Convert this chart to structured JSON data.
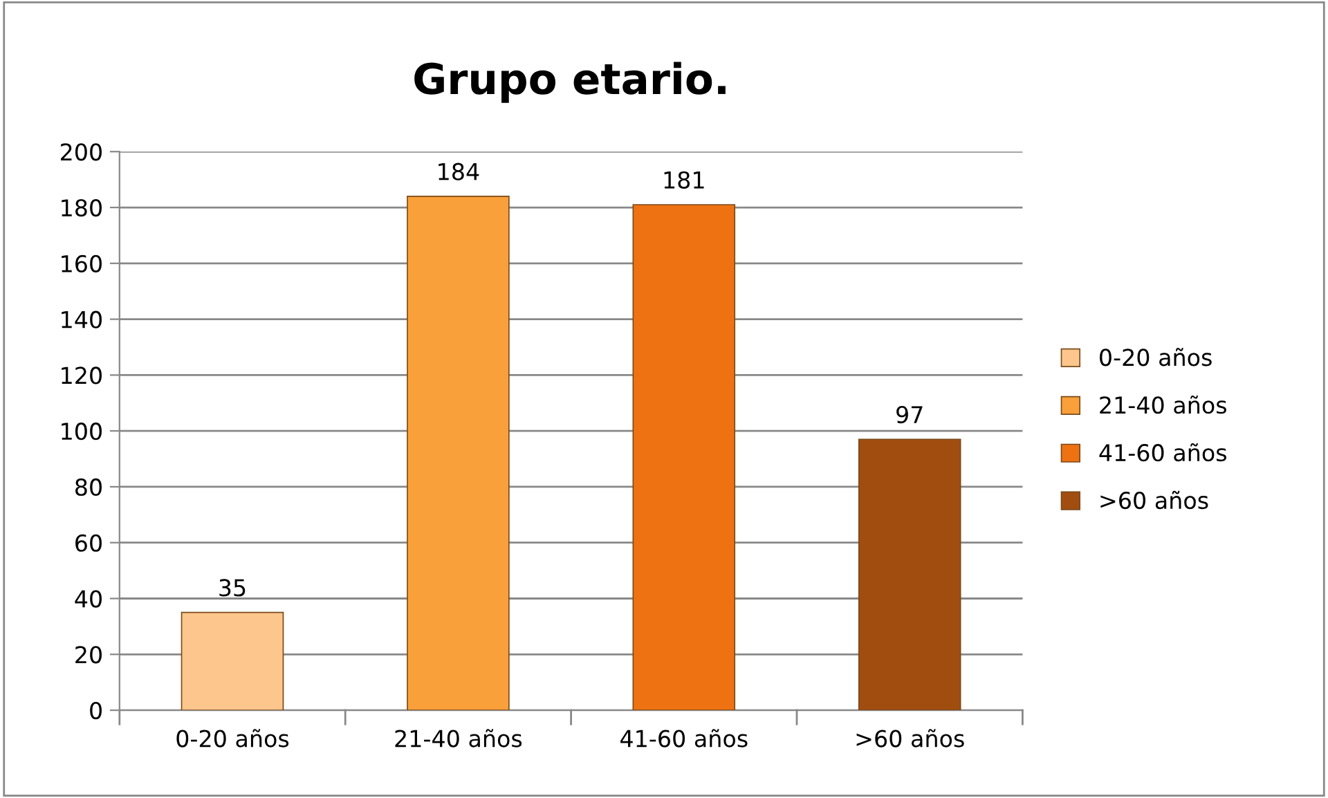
{
  "chart_data": {
    "type": "bar",
    "title": "Grupo etario.",
    "categories": [
      "0-20 años",
      "21-40 años",
      "41-60 años",
      ">60 años"
    ],
    "series": [
      {
        "name": "0-20 años",
        "color": "#fcc68c",
        "values": [
          35,
          null,
          null,
          null
        ]
      },
      {
        "name": "21-40 años",
        "color": "#f9a03a",
        "values": [
          null,
          184,
          null,
          null
        ]
      },
      {
        "name": "41-60 años",
        "color": "#ee7212",
        "values": [
          null,
          null,
          181,
          null
        ]
      },
      {
        "name": ">60 años",
        "color": "#a24d10",
        "values": [
          null,
          null,
          null,
          97
        ]
      }
    ],
    "ylim": [
      0,
      200
    ],
    "yticks": [
      0,
      20,
      40,
      60,
      80,
      100,
      120,
      140,
      160,
      180,
      200
    ],
    "grid": "y",
    "legend": "right",
    "data_labels": true
  }
}
